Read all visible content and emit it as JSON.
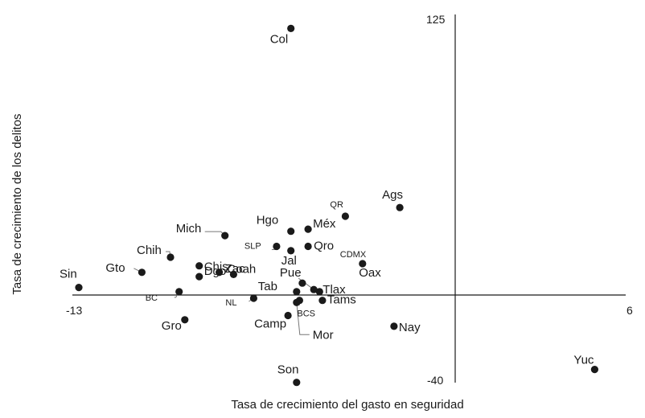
{
  "chart_data": {
    "type": "scatter",
    "xlabel": "Tasa de crecimiento del gasto en seguridad",
    "ylabel": "Tasa de crecimiento de los delitos",
    "xlim": [
      -13,
      6
    ],
    "ylim": [
      -40,
      125
    ],
    "x_tick_labels": [
      "-13",
      "6"
    ],
    "y_tick_labels": [
      "125",
      "-40"
    ],
    "grid": false,
    "legend": "none",
    "point_color": "#1a1a1a",
    "points": [
      {
        "label": "Col",
        "x": -5.6,
        "y": 123
      },
      {
        "label": "QR",
        "x": -3.7,
        "y": 36
      },
      {
        "label": "Ags",
        "x": -1.8,
        "y": 40
      },
      {
        "label": "Méx",
        "x": -5.0,
        "y": 30
      },
      {
        "label": "Hgo",
        "x": -5.6,
        "y": 29
      },
      {
        "label": "Mich",
        "x": -7.9,
        "y": 27
      },
      {
        "label": "Qro",
        "x": -5.0,
        "y": 22
      },
      {
        "label": "SLP",
        "x": -6.1,
        "y": 22
      },
      {
        "label": "Jal",
        "x": -5.6,
        "y": 20
      },
      {
        "label": "Chih",
        "x": -9.8,
        "y": 17
      },
      {
        "label": "Chis",
        "x": -8.8,
        "y": 13
      },
      {
        "label": "CDMX",
        "x": -3.1,
        "y": 14
      },
      {
        "label": "Gto",
        "x": -10.8,
        "y": 10
      },
      {
        "label": "Zac",
        "x": -8.1,
        "y": 10
      },
      {
        "label": "Coah",
        "x": -7.6,
        "y": 9
      },
      {
        "label": "Dgo",
        "x": -8.8,
        "y": 8
      },
      {
        "label": "Pue",
        "x": -5.2,
        "y": 5
      },
      {
        "label": "Sin",
        "x": -13.0,
        "y": 3
      },
      {
        "label": "Tab",
        "x": -5.4,
        "y": 1
      },
      {
        "label": "Oax",
        "x": -4.8,
        "y": 2
      },
      {
        "label": "Tlax",
        "x": -4.6,
        "y": 1
      },
      {
        "label": "BC",
        "x": -9.5,
        "y": 1
      },
      {
        "label": "NL",
        "x": -6.9,
        "y": -2
      },
      {
        "label": "BCS",
        "x": -5.3,
        "y": -3
      },
      {
        "label": "Mor",
        "x": -5.4,
        "y": -4
      },
      {
        "label": "Tams",
        "x": -4.5,
        "y": -3
      },
      {
        "label": "Camp",
        "x": -5.7,
        "y": -10
      },
      {
        "label": "Gro",
        "x": -9.3,
        "y": -12
      },
      {
        "label": "Nay",
        "x": -2.0,
        "y": -15
      },
      {
        "label": "Son",
        "x": -5.4,
        "y": -41
      },
      {
        "label": "Yuc",
        "x": 5.0,
        "y": -35
      }
    ]
  }
}
